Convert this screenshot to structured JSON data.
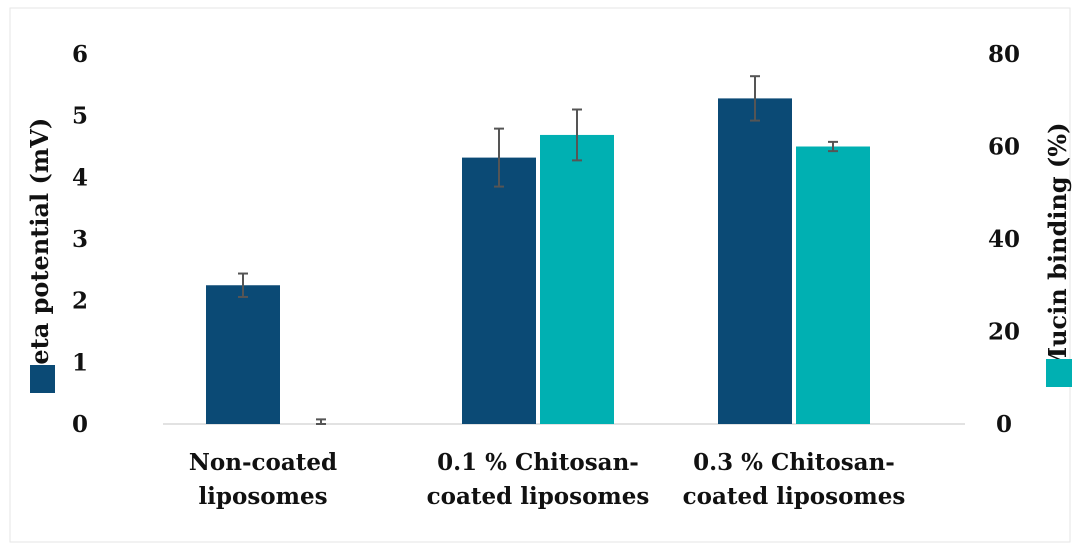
{
  "chart_data": {
    "type": "bar",
    "categories": [
      [
        "Non-coated",
        "liposomes"
      ],
      [
        "0.1 % Chitosan-",
        "coated liposomes"
      ],
      [
        "0.3 % Chitosan-",
        "coated liposomes"
      ]
    ],
    "series": [
      {
        "name": "Zeta potential (mV)",
        "axis": "left",
        "color": "#0b4a75",
        "values": [
          2.25,
          4.32,
          5.28
        ],
        "errors": [
          0.19,
          0.47,
          0.36
        ]
      },
      {
        "name": "Mucin binding (%)",
        "axis": "right",
        "color": "#00b0b2",
        "values": [
          0,
          62.5,
          60.0
        ],
        "errors": [
          1.0,
          5.5,
          1.0
        ]
      }
    ],
    "left_axis": {
      "label": "Zeta potential (mV)",
      "ylim": [
        0,
        6
      ],
      "ticks": [
        0,
        1,
        2,
        3,
        4,
        5,
        6
      ]
    },
    "right_axis": {
      "label": "Mucin binding (%)",
      "ylim": [
        0,
        80
      ],
      "ticks": [
        0,
        20,
        40,
        60,
        80
      ]
    },
    "grid": false,
    "error_bar_color": "#555555"
  }
}
